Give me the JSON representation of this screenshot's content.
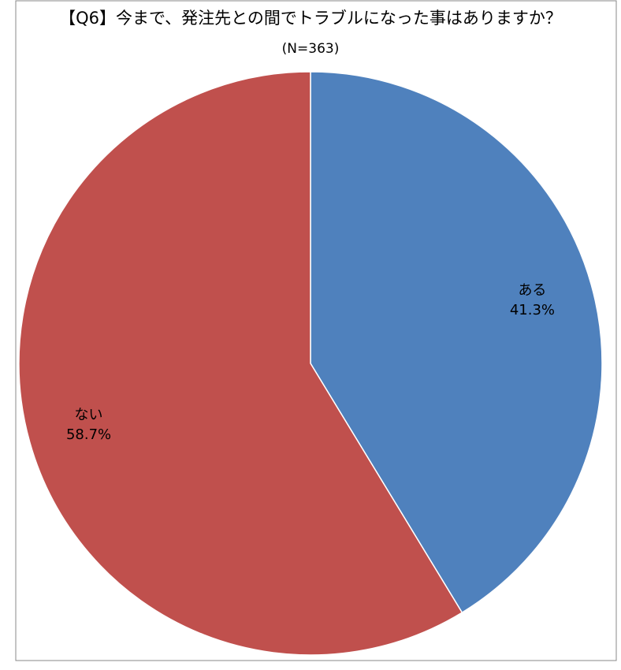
{
  "chart_data": {
    "type": "pie",
    "title": "【Q6】今まで、発注先との間でトラブルになった事はありますか？",
    "subtitle": "(N=363)",
    "categories": [
      "ある",
      "ない"
    ],
    "values": [
      41.3,
      58.7
    ],
    "value_labels": [
      "41.3%",
      "58.7%"
    ],
    "colors": [
      "#4f81bd",
      "#c0504d"
    ]
  }
}
